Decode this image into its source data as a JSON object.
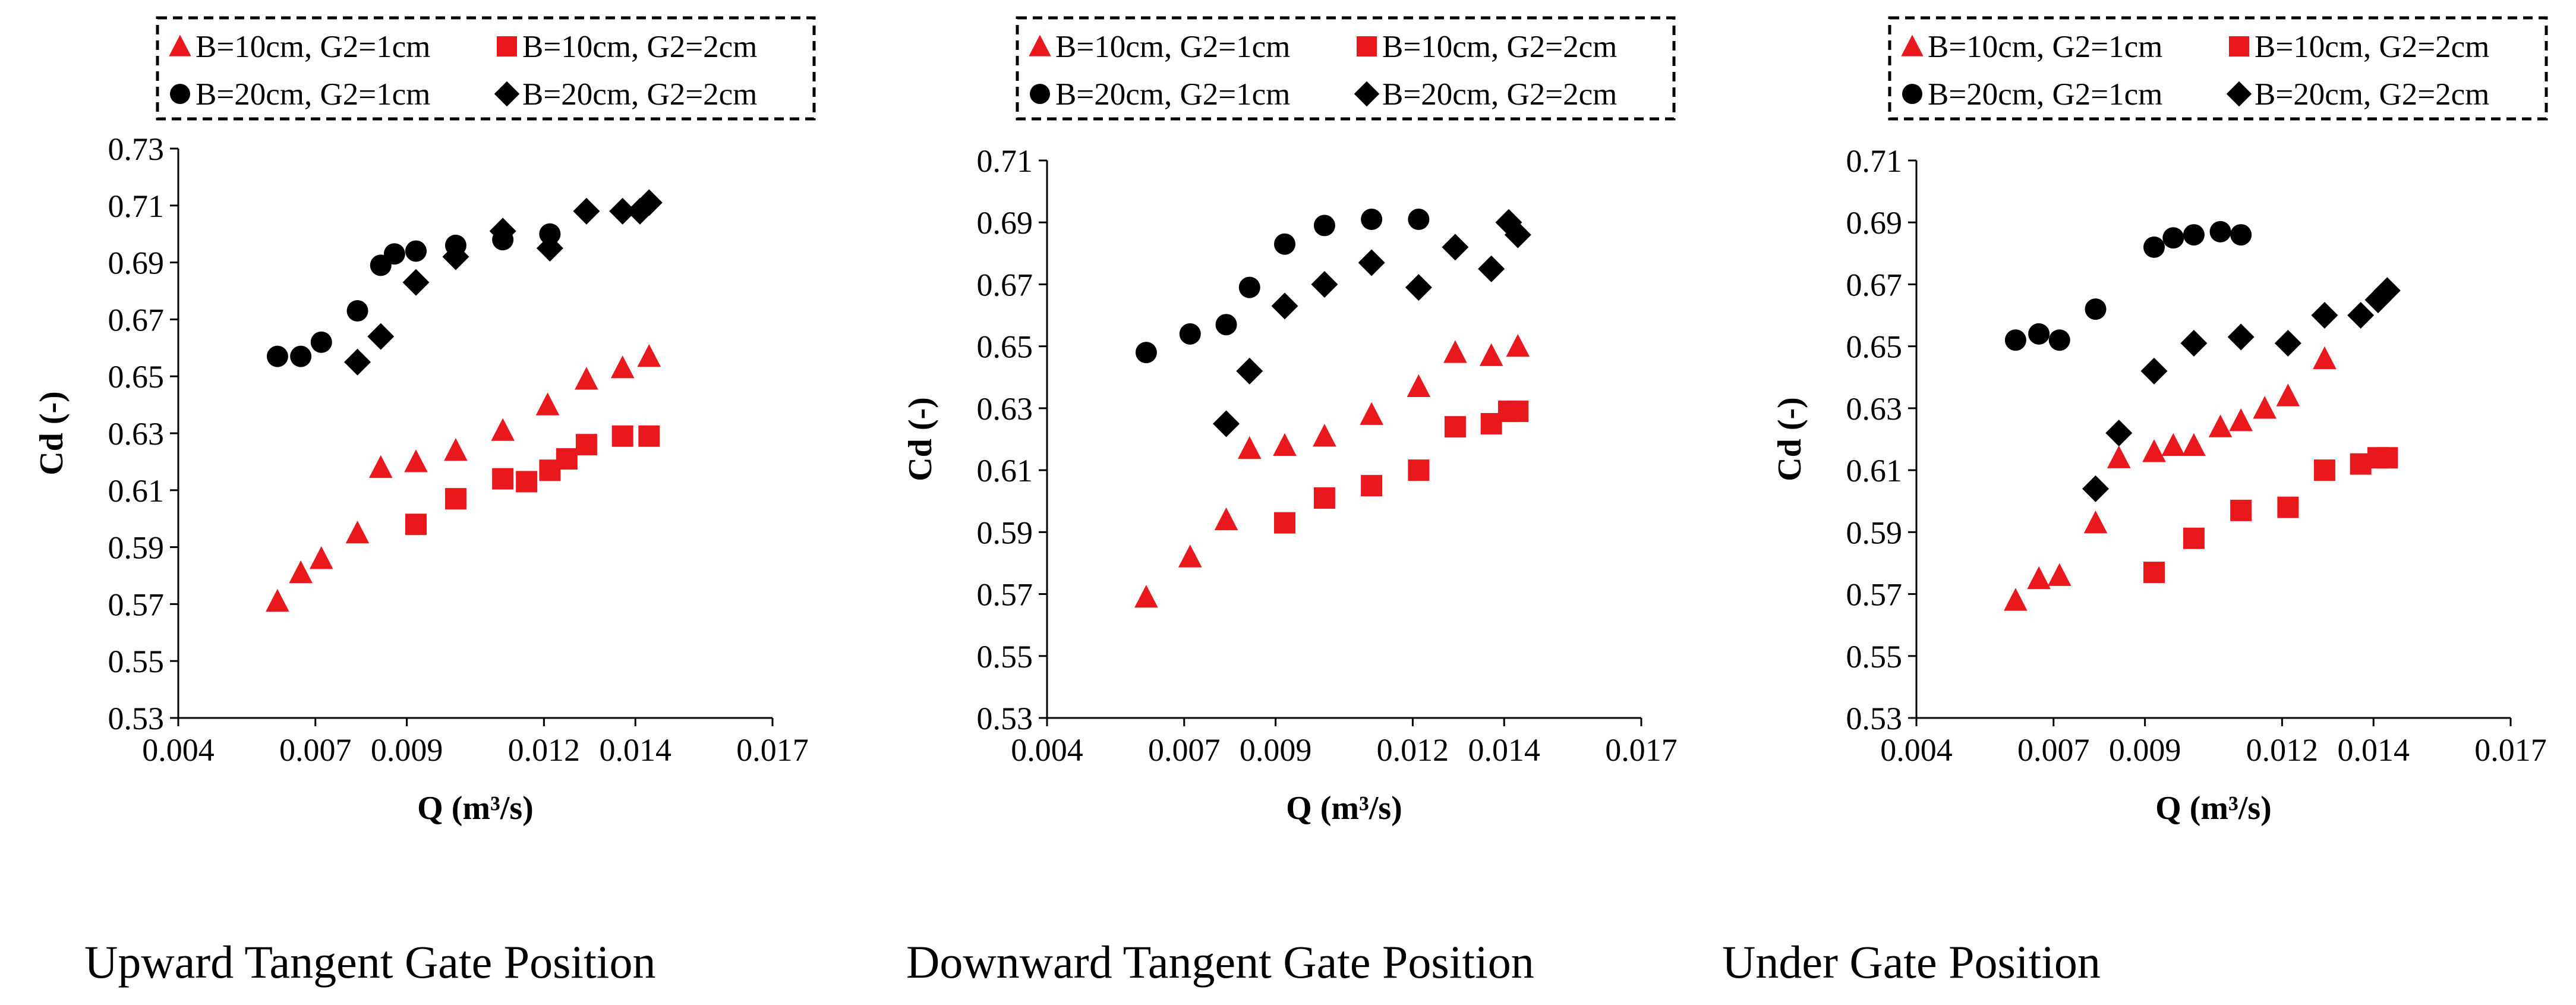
{
  "colors": {
    "red": "#e8181c",
    "black": "#000000"
  },
  "legend_labels": [
    "B=10cm, G2=1cm",
    "B=10cm, G2=2cm",
    "B=20cm, G2=1cm",
    "B=20cm, G2=2cm"
  ],
  "chart_data": [
    {
      "type": "scatter",
      "caption": "Upward Tangent Gate Position",
      "xlabel": "Q (m³/s)",
      "ylabel": "Cd (-)",
      "xlim": [
        0.004,
        0.017
      ],
      "ylim": [
        0.53,
        0.73
      ],
      "x_ticks": [
        0.004,
        0.007,
        0.009,
        0.012,
        0.014,
        0.017
      ],
      "x_tick_labels": [
        "0.004",
        "0.007",
        "0.009",
        "0.012",
        "0.014",
        "0.017"
      ],
      "y_ticks": [
        0.53,
        0.55,
        0.57,
        0.59,
        0.61,
        0.63,
        0.65,
        0.67,
        0.69,
        0.71,
        0.73
      ],
      "y_tick_labels": [
        "0.53",
        "0.55",
        "0.57",
        "0.59",
        "0.61",
        "0.63",
        "0.65",
        "0.67",
        "0.69",
        "0.71",
        "0.73"
      ],
      "series": [
        {
          "name": "B=10cm, G2=1cm",
          "marker": "triangle",
          "color": "#e8181c",
          "x": [
            0.00617,
            0.00668,
            0.00713,
            0.00792,
            0.00843,
            0.0092,
            0.01007,
            0.0111,
            0.01208,
            0.01293,
            0.01372,
            0.0143
          ],
          "y": [
            0.571,
            0.581,
            0.586,
            0.595,
            0.618,
            0.62,
            0.624,
            0.631,
            0.64,
            0.649,
            0.653,
            0.657
          ]
        },
        {
          "name": "B=10cm, G2=2cm",
          "marker": "square",
          "color": "#e8181c",
          "x": [
            0.0092,
            0.01007,
            0.0111,
            0.01162,
            0.01213,
            0.0125,
            0.01293,
            0.01372,
            0.0143
          ],
          "y": [
            0.598,
            0.607,
            0.614,
            0.613,
            0.617,
            0.621,
            0.626,
            0.629,
            0.629
          ]
        },
        {
          "name": "B=20cm, G2=1cm",
          "marker": "circle",
          "color": "#000000",
          "x": [
            0.00617,
            0.00668,
            0.00713,
            0.00792,
            0.00843,
            0.00873,
            0.0092,
            0.01007,
            0.0111,
            0.01213
          ],
          "y": [
            0.657,
            0.657,
            0.662,
            0.673,
            0.689,
            0.693,
            0.694,
            0.696,
            0.698,
            0.7
          ]
        },
        {
          "name": "B=20cm, G2=2cm",
          "marker": "diamond",
          "color": "#000000",
          "x": [
            0.00792,
            0.00843,
            0.0092,
            0.01007,
            0.0111,
            0.01213,
            0.01293,
            0.01372,
            0.0141,
            0.0143
          ],
          "y": [
            0.655,
            0.664,
            0.683,
            0.692,
            0.701,
            0.695,
            0.708,
            0.708,
            0.708,
            0.711
          ]
        }
      ]
    },
    {
      "type": "scatter",
      "caption": "Downward Tangent Gate Position",
      "xlabel": "Q (m³/s)",
      "ylabel": "Cd (-)",
      "xlim": [
        0.004,
        0.017
      ],
      "ylim": [
        0.53,
        0.71
      ],
      "x_ticks": [
        0.004,
        0.007,
        0.009,
        0.012,
        0.014,
        0.017
      ],
      "x_tick_labels": [
        "0.004",
        "0.007",
        "0.009",
        "0.012",
        "0.014",
        "0.017"
      ],
      "y_ticks": [
        0.53,
        0.55,
        0.57,
        0.59,
        0.61,
        0.63,
        0.65,
        0.67,
        0.69,
        0.71
      ],
      "y_tick_labels": [
        "0.53",
        "0.55",
        "0.57",
        "0.59",
        "0.61",
        "0.63",
        "0.65",
        "0.67",
        "0.69",
        "0.71"
      ],
      "series": [
        {
          "name": "B=10cm, G2=1cm",
          "marker": "triangle",
          "color": "#e8181c",
          "x": [
            0.00617,
            0.00713,
            0.00792,
            0.00843,
            0.0092,
            0.01007,
            0.0111,
            0.01213,
            0.01293,
            0.01372,
            0.0143
          ],
          "y": [
            0.569,
            0.582,
            0.594,
            0.617,
            0.618,
            0.621,
            0.628,
            0.637,
            0.648,
            0.647,
            0.65
          ]
        },
        {
          "name": "B=10cm, G2=2cm",
          "marker": "square",
          "color": "#e8181c",
          "x": [
            0.0092,
            0.01007,
            0.0111,
            0.01213,
            0.01293,
            0.01372,
            0.0141,
            0.0143
          ],
          "y": [
            0.593,
            0.601,
            0.605,
            0.61,
            0.624,
            0.625,
            0.629,
            0.629
          ]
        },
        {
          "name": "B=20cm, G2=1cm",
          "marker": "circle",
          "color": "#000000",
          "x": [
            0.00617,
            0.00713,
            0.00792,
            0.00843,
            0.0092,
            0.01007,
            0.0111,
            0.01213
          ],
          "y": [
            0.648,
            0.654,
            0.657,
            0.669,
            0.683,
            0.689,
            0.691,
            0.691
          ]
        },
        {
          "name": "B=20cm, G2=2cm",
          "marker": "diamond",
          "color": "#000000",
          "x": [
            0.00792,
            0.00843,
            0.0092,
            0.01007,
            0.0111,
            0.01213,
            0.01293,
            0.01372,
            0.0141,
            0.0143
          ],
          "y": [
            0.625,
            0.642,
            0.663,
            0.67,
            0.677,
            0.669,
            0.682,
            0.675,
            0.69,
            0.686
          ]
        }
      ]
    },
    {
      "type": "scatter",
      "caption": "Under Gate Position",
      "xlabel": "Q (m³/s)",
      "ylabel": "Cd (-)",
      "xlim": [
        0.004,
        0.017
      ],
      "ylim": [
        0.53,
        0.71
      ],
      "x_ticks": [
        0.004,
        0.007,
        0.009,
        0.012,
        0.014,
        0.017
      ],
      "x_tick_labels": [
        "0.004",
        "0.007",
        "0.009",
        "0.012",
        "0.014",
        "0.017"
      ],
      "y_ticks": [
        0.53,
        0.55,
        0.57,
        0.59,
        0.61,
        0.63,
        0.65,
        0.67,
        0.69,
        0.71
      ],
      "y_tick_labels": [
        "0.53",
        "0.55",
        "0.57",
        "0.59",
        "0.61",
        "0.63",
        "0.65",
        "0.67",
        "0.69",
        "0.71"
      ],
      "series": [
        {
          "name": "B=10cm, G2=1cm",
          "marker": "triangle",
          "color": "#e8181c",
          "x": [
            0.00617,
            0.00668,
            0.00713,
            0.00792,
            0.00843,
            0.0092,
            0.00962,
            0.01007,
            0.01065,
            0.0111,
            0.01162,
            0.01213,
            0.01293
          ],
          "y": [
            0.568,
            0.575,
            0.576,
            0.593,
            0.614,
            0.616,
            0.618,
            0.618,
            0.624,
            0.626,
            0.63,
            0.634,
            0.646
          ]
        },
        {
          "name": "B=10cm, G2=2cm",
          "marker": "square",
          "color": "#e8181c",
          "x": [
            0.0092,
            0.01007,
            0.0111,
            0.01213,
            0.01293,
            0.01372,
            0.0141,
            0.0143
          ],
          "y": [
            0.577,
            0.588,
            0.597,
            0.598,
            0.61,
            0.612,
            0.614,
            0.614
          ]
        },
        {
          "name": "B=20cm, G2=1cm",
          "marker": "circle",
          "color": "#000000",
          "x": [
            0.00617,
            0.00668,
            0.00713,
            0.00792,
            0.0092,
            0.00962,
            0.01007,
            0.01065,
            0.0111
          ],
          "y": [
            0.652,
            0.654,
            0.652,
            0.662,
            0.682,
            0.685,
            0.686,
            0.687,
            0.686
          ]
        },
        {
          "name": "B=20cm, G2=2cm",
          "marker": "diamond",
          "color": "#000000",
          "x": [
            0.00792,
            0.00843,
            0.0092,
            0.01007,
            0.0111,
            0.01213,
            0.01293,
            0.01372,
            0.0141,
            0.0143
          ],
          "y": [
            0.604,
            0.622,
            0.642,
            0.651,
            0.653,
            0.651,
            0.66,
            0.66,
            0.665,
            0.668
          ]
        }
      ]
    }
  ]
}
